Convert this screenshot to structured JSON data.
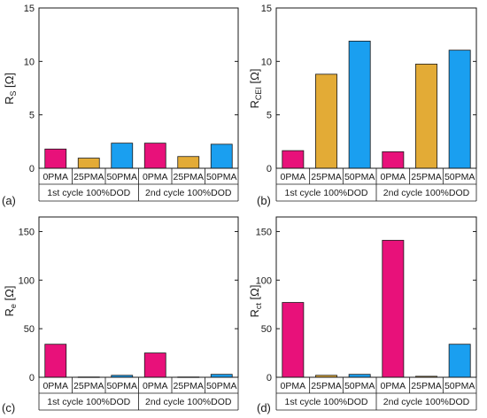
{
  "colors": {
    "pma0": "#e8117a",
    "pma25": "#e3ab36",
    "pma50": "#1a9ff0",
    "axis": "#1a1a1a"
  },
  "chart_data": [
    {
      "type": "bar",
      "panel_label": "(a)",
      "ylabel_main": "R",
      "ylabel_sub": "S",
      "ylabel_unit": " [Ω]",
      "ylim": [
        0,
        15
      ],
      "yticks": [
        0,
        5,
        10,
        15
      ],
      "grid": false,
      "groups": [
        "1st cycle 100%DOD",
        "2nd cycle 100%DOD"
      ],
      "categories": [
        "0PMA",
        "25PMA",
        "50PMA"
      ],
      "series": [
        {
          "group": "1st cycle 100%DOD",
          "values": [
            1.8,
            0.95,
            2.35
          ]
        },
        {
          "group": "2nd cycle 100%DOD",
          "values": [
            2.35,
            1.1,
            2.25
          ]
        }
      ]
    },
    {
      "type": "bar",
      "panel_label": "(b)",
      "ylabel_main": "R",
      "ylabel_sub": "CEI",
      "ylabel_unit": " [Ω]",
      "ylim": [
        0,
        15
      ],
      "yticks": [
        0,
        5,
        10,
        15
      ],
      "grid": false,
      "groups": [
        "1st cycle 100%DOD",
        "2nd cycle 100%DOD"
      ],
      "categories": [
        "0PMA",
        "25PMA",
        "50PMA"
      ],
      "series": [
        {
          "group": "1st cycle 100%DOD",
          "values": [
            1.65,
            8.8,
            11.9
          ]
        },
        {
          "group": "2nd cycle 100%DOD",
          "values": [
            1.55,
            9.75,
            11.05
          ]
        }
      ]
    },
    {
      "type": "bar",
      "panel_label": "(c)",
      "ylabel_main": "R",
      "ylabel_sub": "e",
      "ylabel_unit": " [Ω]",
      "ylim": [
        0,
        165
      ],
      "yticks": [
        0,
        50,
        100,
        150
      ],
      "grid": false,
      "groups": [
        "1st cycle 100%DOD",
        "2nd cycle 100%DOD"
      ],
      "categories": [
        "0PMA",
        "25PMA",
        "50PMA"
      ],
      "series": [
        {
          "group": "1st cycle 100%DOD",
          "values": [
            34,
            0.3,
            2
          ]
        },
        {
          "group": "2nd cycle 100%DOD",
          "values": [
            25,
            0.3,
            3
          ]
        }
      ]
    },
    {
      "type": "bar",
      "panel_label": "(d)",
      "ylabel_main": "R",
      "ylabel_sub": "ct",
      "ylabel_unit": " [Ω]",
      "ylim": [
        0,
        165
      ],
      "yticks": [
        0,
        50,
        100,
        150
      ],
      "grid": false,
      "groups": [
        "1st cycle 100%DOD",
        "2nd cycle 100%DOD"
      ],
      "categories": [
        "0PMA",
        "25PMA",
        "50PMA"
      ],
      "series": [
        {
          "group": "1st cycle 100%DOD",
          "values": [
            77,
            2,
            3
          ]
        },
        {
          "group": "2nd cycle 100%DOD",
          "values": [
            141,
            1,
            34
          ]
        }
      ]
    }
  ]
}
